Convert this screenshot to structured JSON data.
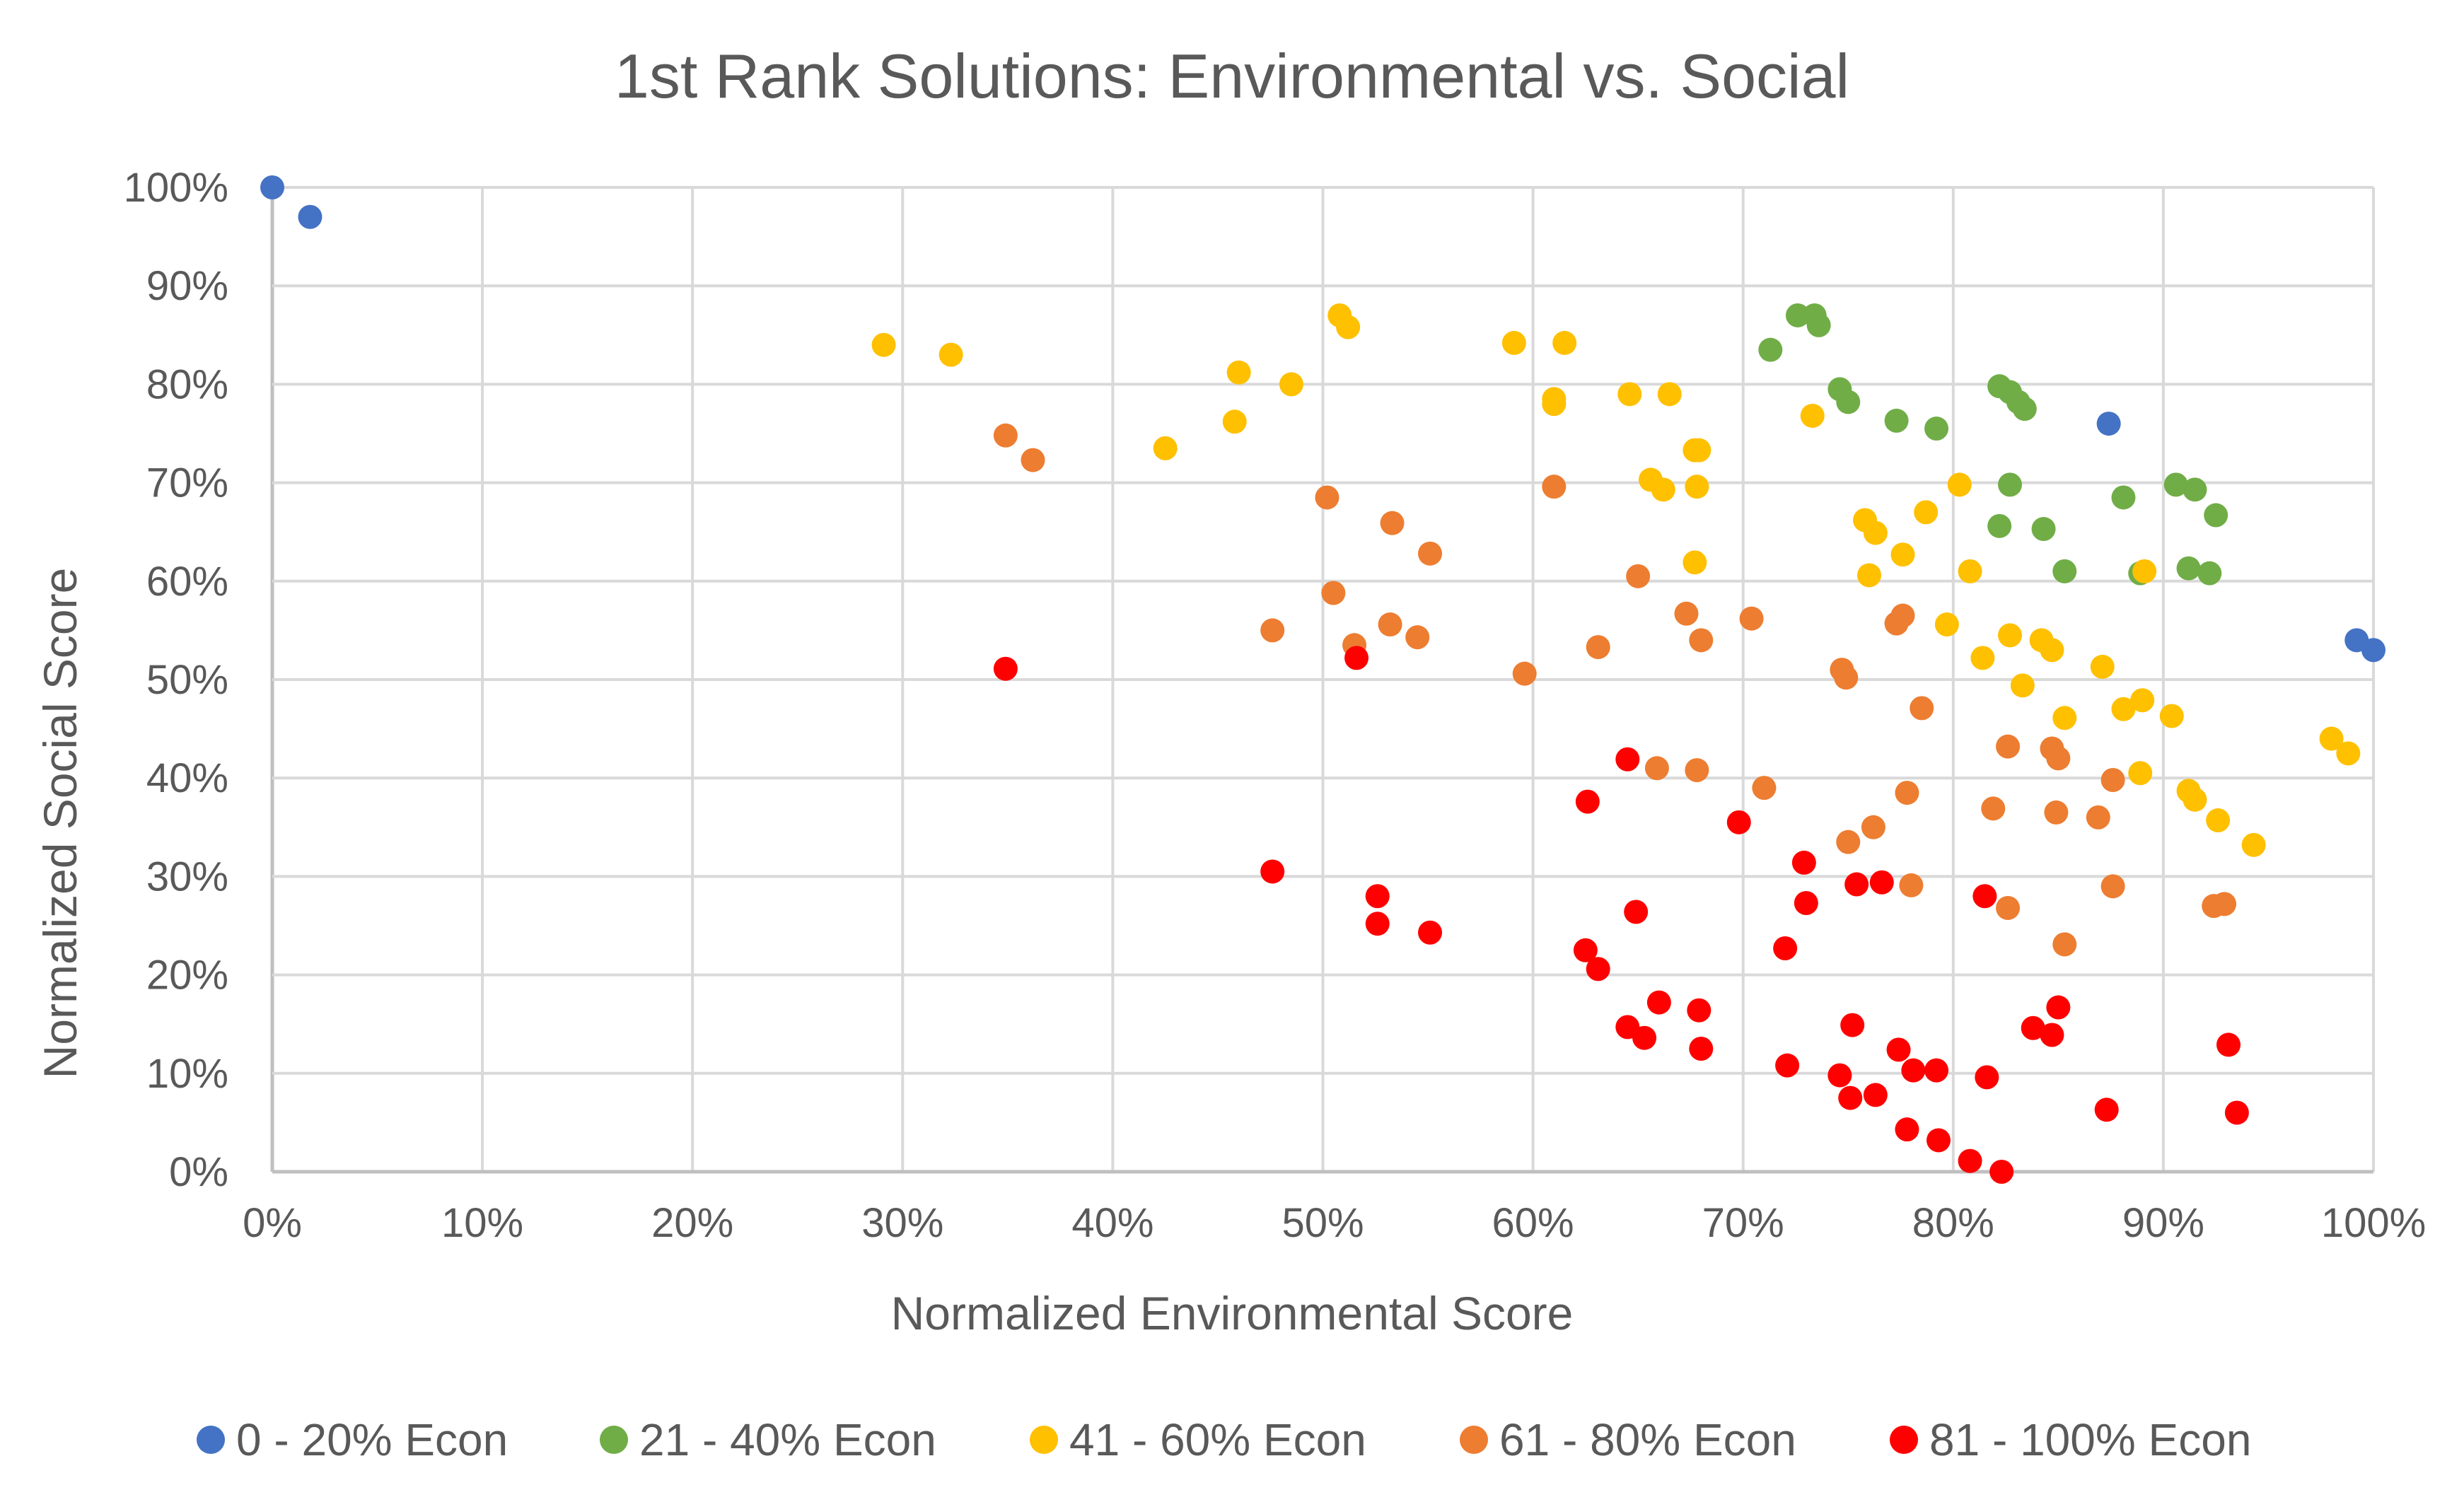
{
  "chart_data": {
    "type": "scatter",
    "title": "1st Rank Solutions: Environmental vs. Social",
    "xlabel": "Normalized Environmental Score",
    "ylabel": "Normalized Social Score",
    "xlim": [
      0,
      100
    ],
    "ylim": [
      0,
      100
    ],
    "x_ticks": [
      "0%",
      "10%",
      "20%",
      "30%",
      "40%",
      "50%",
      "60%",
      "70%",
      "80%",
      "90%",
      "100%"
    ],
    "y_ticks": [
      "0%",
      "10%",
      "20%",
      "30%",
      "40%",
      "50%",
      "60%",
      "70%",
      "80%",
      "90%",
      "100%"
    ],
    "grid": true,
    "legend_position": "bottom",
    "series": [
      {
        "name": "0 - 20% Econ",
        "color": "#4472c4",
        "points": [
          [
            0,
            100
          ],
          [
            1.8,
            97
          ],
          [
            87.4,
            76
          ],
          [
            99.2,
            54
          ],
          [
            100,
            53
          ]
        ]
      },
      {
        "name": "21 - 40% Econ",
        "color": "#70ad47",
        "points": [
          [
            71.3,
            83.5
          ],
          [
            72.6,
            87
          ],
          [
            73.4,
            87
          ],
          [
            73.6,
            86
          ],
          [
            74.6,
            79.5
          ],
          [
            75,
            78.2
          ],
          [
            77.3,
            76.3
          ],
          [
            79.2,
            75.5
          ],
          [
            82.2,
            79.8
          ],
          [
            82.7,
            79.2
          ],
          [
            83.1,
            78.2
          ],
          [
            83.4,
            77.5
          ],
          [
            82.7,
            69.8
          ],
          [
            82.2,
            65.6
          ],
          [
            84.3,
            65.3
          ],
          [
            85.3,
            61
          ],
          [
            88.1,
            68.5
          ],
          [
            88.9,
            60.8
          ],
          [
            90.6,
            69.8
          ],
          [
            91.5,
            69.3
          ],
          [
            92.5,
            66.7
          ],
          [
            91.2,
            61.3
          ],
          [
            92.2,
            60.8
          ]
        ]
      },
      {
        "name": "41 - 60% Econ",
        "color": "#ffc000",
        "points": [
          [
            29.1,
            84
          ],
          [
            32.3,
            83
          ],
          [
            42.5,
            73.5
          ],
          [
            45.8,
            76.2
          ],
          [
            46,
            81.2
          ],
          [
            48.5,
            80
          ],
          [
            50.8,
            87
          ],
          [
            51.2,
            85.8
          ],
          [
            59.1,
            84.2
          ],
          [
            61,
            78.5
          ],
          [
            61.5,
            84.2
          ],
          [
            61,
            78
          ],
          [
            64.6,
            79
          ],
          [
            66.5,
            79
          ],
          [
            65.6,
            70.3
          ],
          [
            66.2,
            69.3
          ],
          [
            67.7,
            73.3
          ],
          [
            67.9,
            73.3
          ],
          [
            67.8,
            69.6
          ],
          [
            67.7,
            61.9
          ],
          [
            73.3,
            76.8
          ],
          [
            75.8,
            66.2
          ],
          [
            76.3,
            64.9
          ],
          [
            76,
            60.6
          ],
          [
            77.6,
            62.7
          ],
          [
            78.7,
            67
          ],
          [
            79.7,
            55.6
          ],
          [
            80.3,
            69.8
          ],
          [
            80.8,
            61
          ],
          [
            81.4,
            52.2
          ],
          [
            82.7,
            54.5
          ],
          [
            83.3,
            49.4
          ],
          [
            84.2,
            54
          ],
          [
            84.7,
            53
          ],
          [
            85.3,
            46.1
          ],
          [
            87.1,
            51.3
          ],
          [
            88.1,
            47
          ],
          [
            89.1,
            61
          ],
          [
            89,
            47.9
          ],
          [
            88.9,
            40.5
          ],
          [
            90.4,
            46.3
          ],
          [
            91.2,
            38.7
          ],
          [
            91.5,
            37.8
          ],
          [
            92.6,
            35.7
          ],
          [
            94.3,
            33.2
          ],
          [
            98,
            44
          ],
          [
            98.8,
            42.5
          ]
        ]
      },
      {
        "name": "61 - 80% Econ",
        "color": "#ed7d31",
        "points": [
          [
            34.9,
            74.8
          ],
          [
            36.2,
            72.3
          ],
          [
            50.2,
            68.5
          ],
          [
            50.5,
            58.8
          ],
          [
            51.5,
            53.5
          ],
          [
            53.3,
            65.9
          ],
          [
            53.2,
            55.6
          ],
          [
            54.5,
            54.3
          ],
          [
            55.1,
            62.8
          ],
          [
            47.6,
            55
          ],
          [
            59.6,
            50.6
          ],
          [
            61,
            69.6
          ],
          [
            63.1,
            53.3
          ],
          [
            65,
            60.5
          ],
          [
            65.9,
            41
          ],
          [
            67.3,
            56.7
          ],
          [
            68,
            54
          ],
          [
            67.8,
            40.8
          ],
          [
            70.4,
            56.2
          ],
          [
            71,
            39
          ],
          [
            74.7,
            51
          ],
          [
            74.9,
            50.2
          ],
          [
            75,
            33.5
          ],
          [
            76.2,
            35
          ],
          [
            77.3,
            55.7
          ],
          [
            77.6,
            56.5
          ],
          [
            77.8,
            38.5
          ],
          [
            78,
            29.1
          ],
          [
            78.5,
            47.1
          ],
          [
            81.9,
            36.9
          ],
          [
            82.6,
            43.2
          ],
          [
            82.6,
            26.8
          ],
          [
            84.7,
            43
          ],
          [
            85,
            42
          ],
          [
            84.9,
            36.5
          ],
          [
            85.3,
            23.1
          ],
          [
            86.9,
            36
          ],
          [
            87.6,
            39.8
          ],
          [
            87.6,
            29
          ],
          [
            92.4,
            27
          ],
          [
            92.9,
            27.2
          ]
        ]
      },
      {
        "name": "81 - 100% Econ",
        "color": "#ff0000",
        "points": [
          [
            34.9,
            51.1
          ],
          [
            51.6,
            52.2
          ],
          [
            47.6,
            30.5
          ],
          [
            52.6,
            28
          ],
          [
            52.6,
            25.2
          ],
          [
            55.1,
            24.3
          ],
          [
            62.5,
            22.5
          ],
          [
            62.6,
            37.6
          ],
          [
            63.1,
            20.6
          ],
          [
            64.5,
            41.9
          ],
          [
            64.5,
            14.7
          ],
          [
            64.9,
            26.4
          ],
          [
            65.3,
            13.6
          ],
          [
            66,
            17.2
          ],
          [
            67.9,
            16.4
          ],
          [
            68,
            12.5
          ],
          [
            69.8,
            35.5
          ],
          [
            72,
            22.7
          ],
          [
            72.1,
            10.8
          ],
          [
            72.9,
            31.4
          ],
          [
            73,
            27.3
          ],
          [
            74.6,
            9.8
          ],
          [
            75.1,
            7.5
          ],
          [
            75.2,
            14.9
          ],
          [
            75.4,
            29.2
          ],
          [
            76.3,
            7.8
          ],
          [
            76.6,
            29.4
          ],
          [
            77.4,
            12.4
          ],
          [
            77.8,
            4.3
          ],
          [
            78.1,
            10.3
          ],
          [
            79.2,
            10.3
          ],
          [
            79.3,
            3.2
          ],
          [
            80.8,
            1.1
          ],
          [
            81.5,
            28
          ],
          [
            81.6,
            9.6
          ],
          [
            82.3,
            0
          ],
          [
            83.8,
            14.6
          ],
          [
            84.7,
            13.9
          ],
          [
            85,
            16.7
          ],
          [
            87.3,
            6.3
          ],
          [
            93.1,
            12.9
          ],
          [
            93.5,
            6
          ]
        ]
      }
    ]
  }
}
